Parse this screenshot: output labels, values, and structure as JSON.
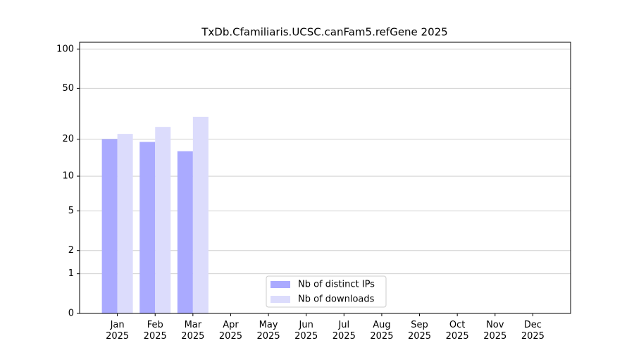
{
  "chart_data": {
    "type": "bar",
    "title": "TxDb.Cfamiliaris.UCSC.canFam5.refGene 2025",
    "categories": [
      "Jan 2025",
      "Feb 2025",
      "Mar 2025",
      "Apr 2025",
      "May 2025",
      "Jun 2025",
      "Jul 2025",
      "Aug 2025",
      "Sep 2025",
      "Oct 2025",
      "Nov 2025",
      "Dec 2025"
    ],
    "series": [
      {
        "name": "Nb of distinct IPs",
        "color": "#aaaaff",
        "values": [
          20,
          19,
          16,
          null,
          null,
          null,
          null,
          null,
          null,
          null,
          null,
          null
        ]
      },
      {
        "name": "Nb of downloads",
        "color": "#dcdcfc",
        "values": [
          22,
          25,
          30,
          null,
          null,
          null,
          null,
          null,
          null,
          null,
          null,
          null
        ]
      }
    ],
    "yscale": "log1p",
    "ylim": [
      0,
      113
    ],
    "yticks": [
      0,
      1,
      2,
      5,
      10,
      20,
      50,
      100
    ],
    "grid": true,
    "legend": "lower center"
  }
}
